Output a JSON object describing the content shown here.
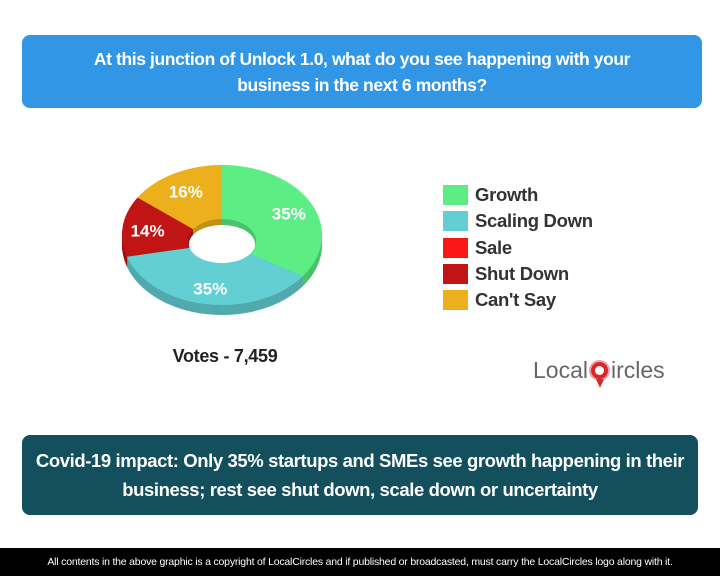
{
  "header": {
    "question": "At this junction of Unlock 1.0, what do you see happening with your business in the next 6 months?"
  },
  "chart_data": {
    "type": "pie",
    "style": "3d-donut",
    "categories": [
      "Growth",
      "Scaling Down",
      "Sale",
      "Shut Down",
      "Can't Say"
    ],
    "values": [
      35,
      35,
      0,
      14,
      16
    ],
    "labels": [
      "35%",
      "35%",
      "",
      "14%",
      "16%"
    ],
    "colors": [
      "#5ced85",
      "#63cfd3",
      "#f91616",
      "#c11414",
      "#ecb01c"
    ],
    "legend": "right"
  },
  "votes": "Votes - 7,459",
  "logo": {
    "text_left": "Local",
    "text_right": "ircles",
    "full": "LocalCircles"
  },
  "headline": "Covid-19 impact: Only 35% startups and SMEs see growth happening in their business; rest see shut down, scale down or uncertainty",
  "footer": "All contents in the above graphic is a copyright of LocalCircles and if published or broadcasted, must carry the LocalCircles logo along with it."
}
